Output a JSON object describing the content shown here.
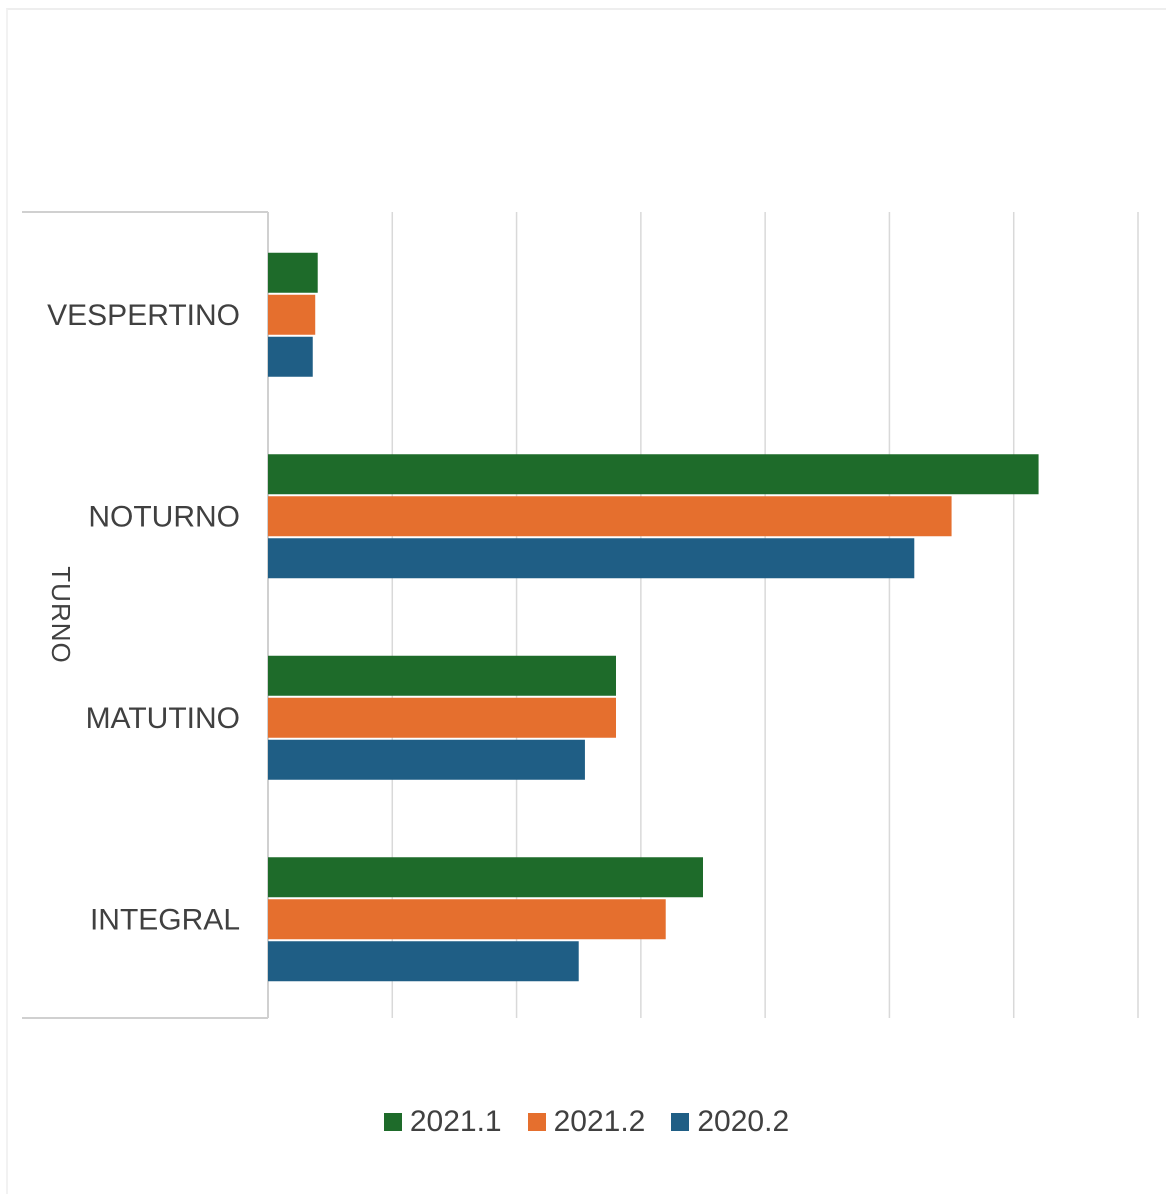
{
  "chart_data": {
    "type": "bar",
    "orientation": "horizontal",
    "categories": [
      "VESPERTINO",
      "NOTURNO",
      "MATUTINO",
      "INTEGRAL"
    ],
    "ylabel": "TURNO",
    "xlim": [
      0,
      7
    ],
    "grid": true,
    "series": [
      {
        "name": "2021.1",
        "color": "#1e6b2a",
        "values": [
          0.4,
          6.2,
          2.8,
          3.5
        ]
      },
      {
        "name": "2021.2",
        "color": "#e56f2e",
        "values": [
          0.38,
          5.5,
          2.8,
          3.2
        ]
      },
      {
        "name": "2020.2",
        "color": "#1f5e85",
        "values": [
          0.36,
          5.2,
          2.55,
          2.5
        ]
      }
    ],
    "legend_position": "bottom"
  }
}
